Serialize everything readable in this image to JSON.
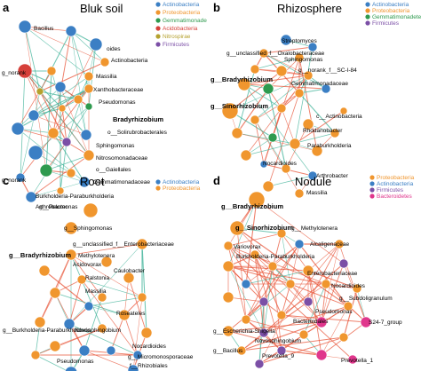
{
  "colors": {
    "Actinobacteria": "#3b7fc4",
    "Proteobacteria": "#f0962e",
    "Gemmatimonadetes": "#2e9a4e",
    "Acidobacteria": "#d6403a",
    "Nitrospirae": "#b5a12e",
    "Firmicutes": "#7b4fa6",
    "Bacteroidetes": "#e0368c",
    "edge_pos": "#e8553a",
    "edge_neg": "#40b39a"
  },
  "panels": [
    {
      "letter": "a",
      "title": "Bluk soil",
      "legend": [
        {
          "text": "Actinobacteria",
          "taxon": "Actinobacteria"
        },
        {
          "text": "Proteobacteria",
          "taxon": "Proteobacteria"
        },
        {
          "text": "Gemmatimonade",
          "taxon": "Gemmatimonadetes"
        },
        {
          "text": "Acidobacteria",
          "taxon": "Acidobacteria"
        },
        {
          "text": "Nitrospirae",
          "taxon": "Nitrospirae"
        },
        {
          "text": "Firmicutes",
          "taxon": "Firmicutes"
        }
      ],
      "labels": [
        {
          "text": "Bacillus"
        },
        {
          "text": "oides"
        },
        {
          "text": "Actinobacteria"
        },
        {
          "text": "g_norank"
        },
        {
          "text": "Massilia"
        },
        {
          "text": "Xanthobacteraceae"
        },
        {
          "text": "Pseudomonas"
        },
        {
          "text": "Bradyrhizobium",
          "bold": true
        },
        {
          "text": "o__Solirubrobacterales"
        },
        {
          "text": "Sphingomonas"
        },
        {
          "text": "Nitrosomonadaceae"
        },
        {
          "text": "o__Gaiellales"
        },
        {
          "text": "g_norank"
        },
        {
          "text": "Gemmatimonadaceae"
        },
        {
          "text": "Burkholderia-Paraburkholderia"
        },
        {
          "text": "Arthrobacter"
        }
      ]
    },
    {
      "letter": "b",
      "title": "Rhizosphere",
      "legend": [
        {
          "text": "Actinobacteria",
          "taxon": "Actinobacteria"
        },
        {
          "text": "Proteobacteria",
          "taxon": "Proteobacteria"
        },
        {
          "text": "Gemmatimonadetes",
          "taxon": "Gemmatimonadetes"
        },
        {
          "text": "Firmicutes",
          "taxon": "Firmicutes"
        }
      ],
      "labels": [
        {
          "text": "Streptomyces"
        },
        {
          "text": "g__unclassified_f__Oxalobacteraceae"
        },
        {
          "text": "Sphingomonas"
        },
        {
          "text": "g__norank_f__SC-I-84"
        },
        {
          "text": "g__Bradyrhizobium",
          "bold": true
        },
        {
          "text": "Gemmatimonadaceae"
        },
        {
          "text": "g__Sinorhizobium",
          "bold": true
        },
        {
          "text": "c__Actinobacteria"
        },
        {
          "text": "Rhodanobacter"
        },
        {
          "text": "Paraburkholderia"
        },
        {
          "text": "Nocardioides"
        },
        {
          "text": "Arthrobacter"
        },
        {
          "text": "Massilia"
        }
      ]
    },
    {
      "letter": "c",
      "title": "Root",
      "legend": [
        {
          "text": "Actinobacteria",
          "taxon": "Actinobacteria"
        },
        {
          "text": "Proteobacteria",
          "taxon": "Proteobacteria"
        }
      ],
      "labels": [
        {
          "text": "g__Pelomonas"
        },
        {
          "text": "g__Sphingomonas"
        },
        {
          "text": "g__unclassified_f__Enterobacteriaceae"
        },
        {
          "text": "g__Bradyrhizobium",
          "bold": true
        },
        {
          "text": "Methylotenera"
        },
        {
          "text": "Acidovorax"
        },
        {
          "text": "Caulobacter"
        },
        {
          "text": "Ralstonia"
        },
        {
          "text": "Massilia"
        },
        {
          "text": "Roseateles"
        },
        {
          "text": "g__Burkholderia-Paraburkholderia"
        },
        {
          "text": "Novosphingobium"
        },
        {
          "text": "Nocardioides"
        },
        {
          "text": "g__Micromonosporaceae"
        },
        {
          "text": "Pseudomonas"
        },
        {
          "text": "f__Rhizobiales"
        },
        {
          "text": "g__Actinoplanes"
        }
      ]
    },
    {
      "letter": "d",
      "title": "Nodule",
      "legend": [
        {
          "text": "Proteobacteria",
          "taxon": "Proteobacteria"
        },
        {
          "text": "Actinobacteria",
          "taxon": "Actinobacteria"
        },
        {
          "text": "Firmicutes",
          "taxon": "Firmicutes"
        },
        {
          "text": "Bacteroidetes",
          "taxon": "Bacteroidetes"
        }
      ],
      "labels": [
        {
          "text": "g__Bradyrhizobium",
          "bold": true
        },
        {
          "text": "g__Sinorhizobium",
          "bold": true
        },
        {
          "text": "g__Methylotenera"
        },
        {
          "text": "Variovorax"
        },
        {
          "text": "Alcaligenaceae"
        },
        {
          "text": "Burkholderia-Paraburkholderia"
        },
        {
          "text": "Enterobacteriaceae"
        },
        {
          "text": "Nocardioides"
        },
        {
          "text": "g__Subdoligranulum"
        },
        {
          "text": "Pseudomonas"
        },
        {
          "text": "Bacteroidales"
        },
        {
          "text": "S24-7_group"
        },
        {
          "text": "g__Escherichia-Shigella"
        },
        {
          "text": "Novosphingobium"
        },
        {
          "text": "g__Bacillus"
        },
        {
          "text": "Prevotella_9"
        },
        {
          "text": "Prevotella_1"
        }
      ]
    }
  ]
}
